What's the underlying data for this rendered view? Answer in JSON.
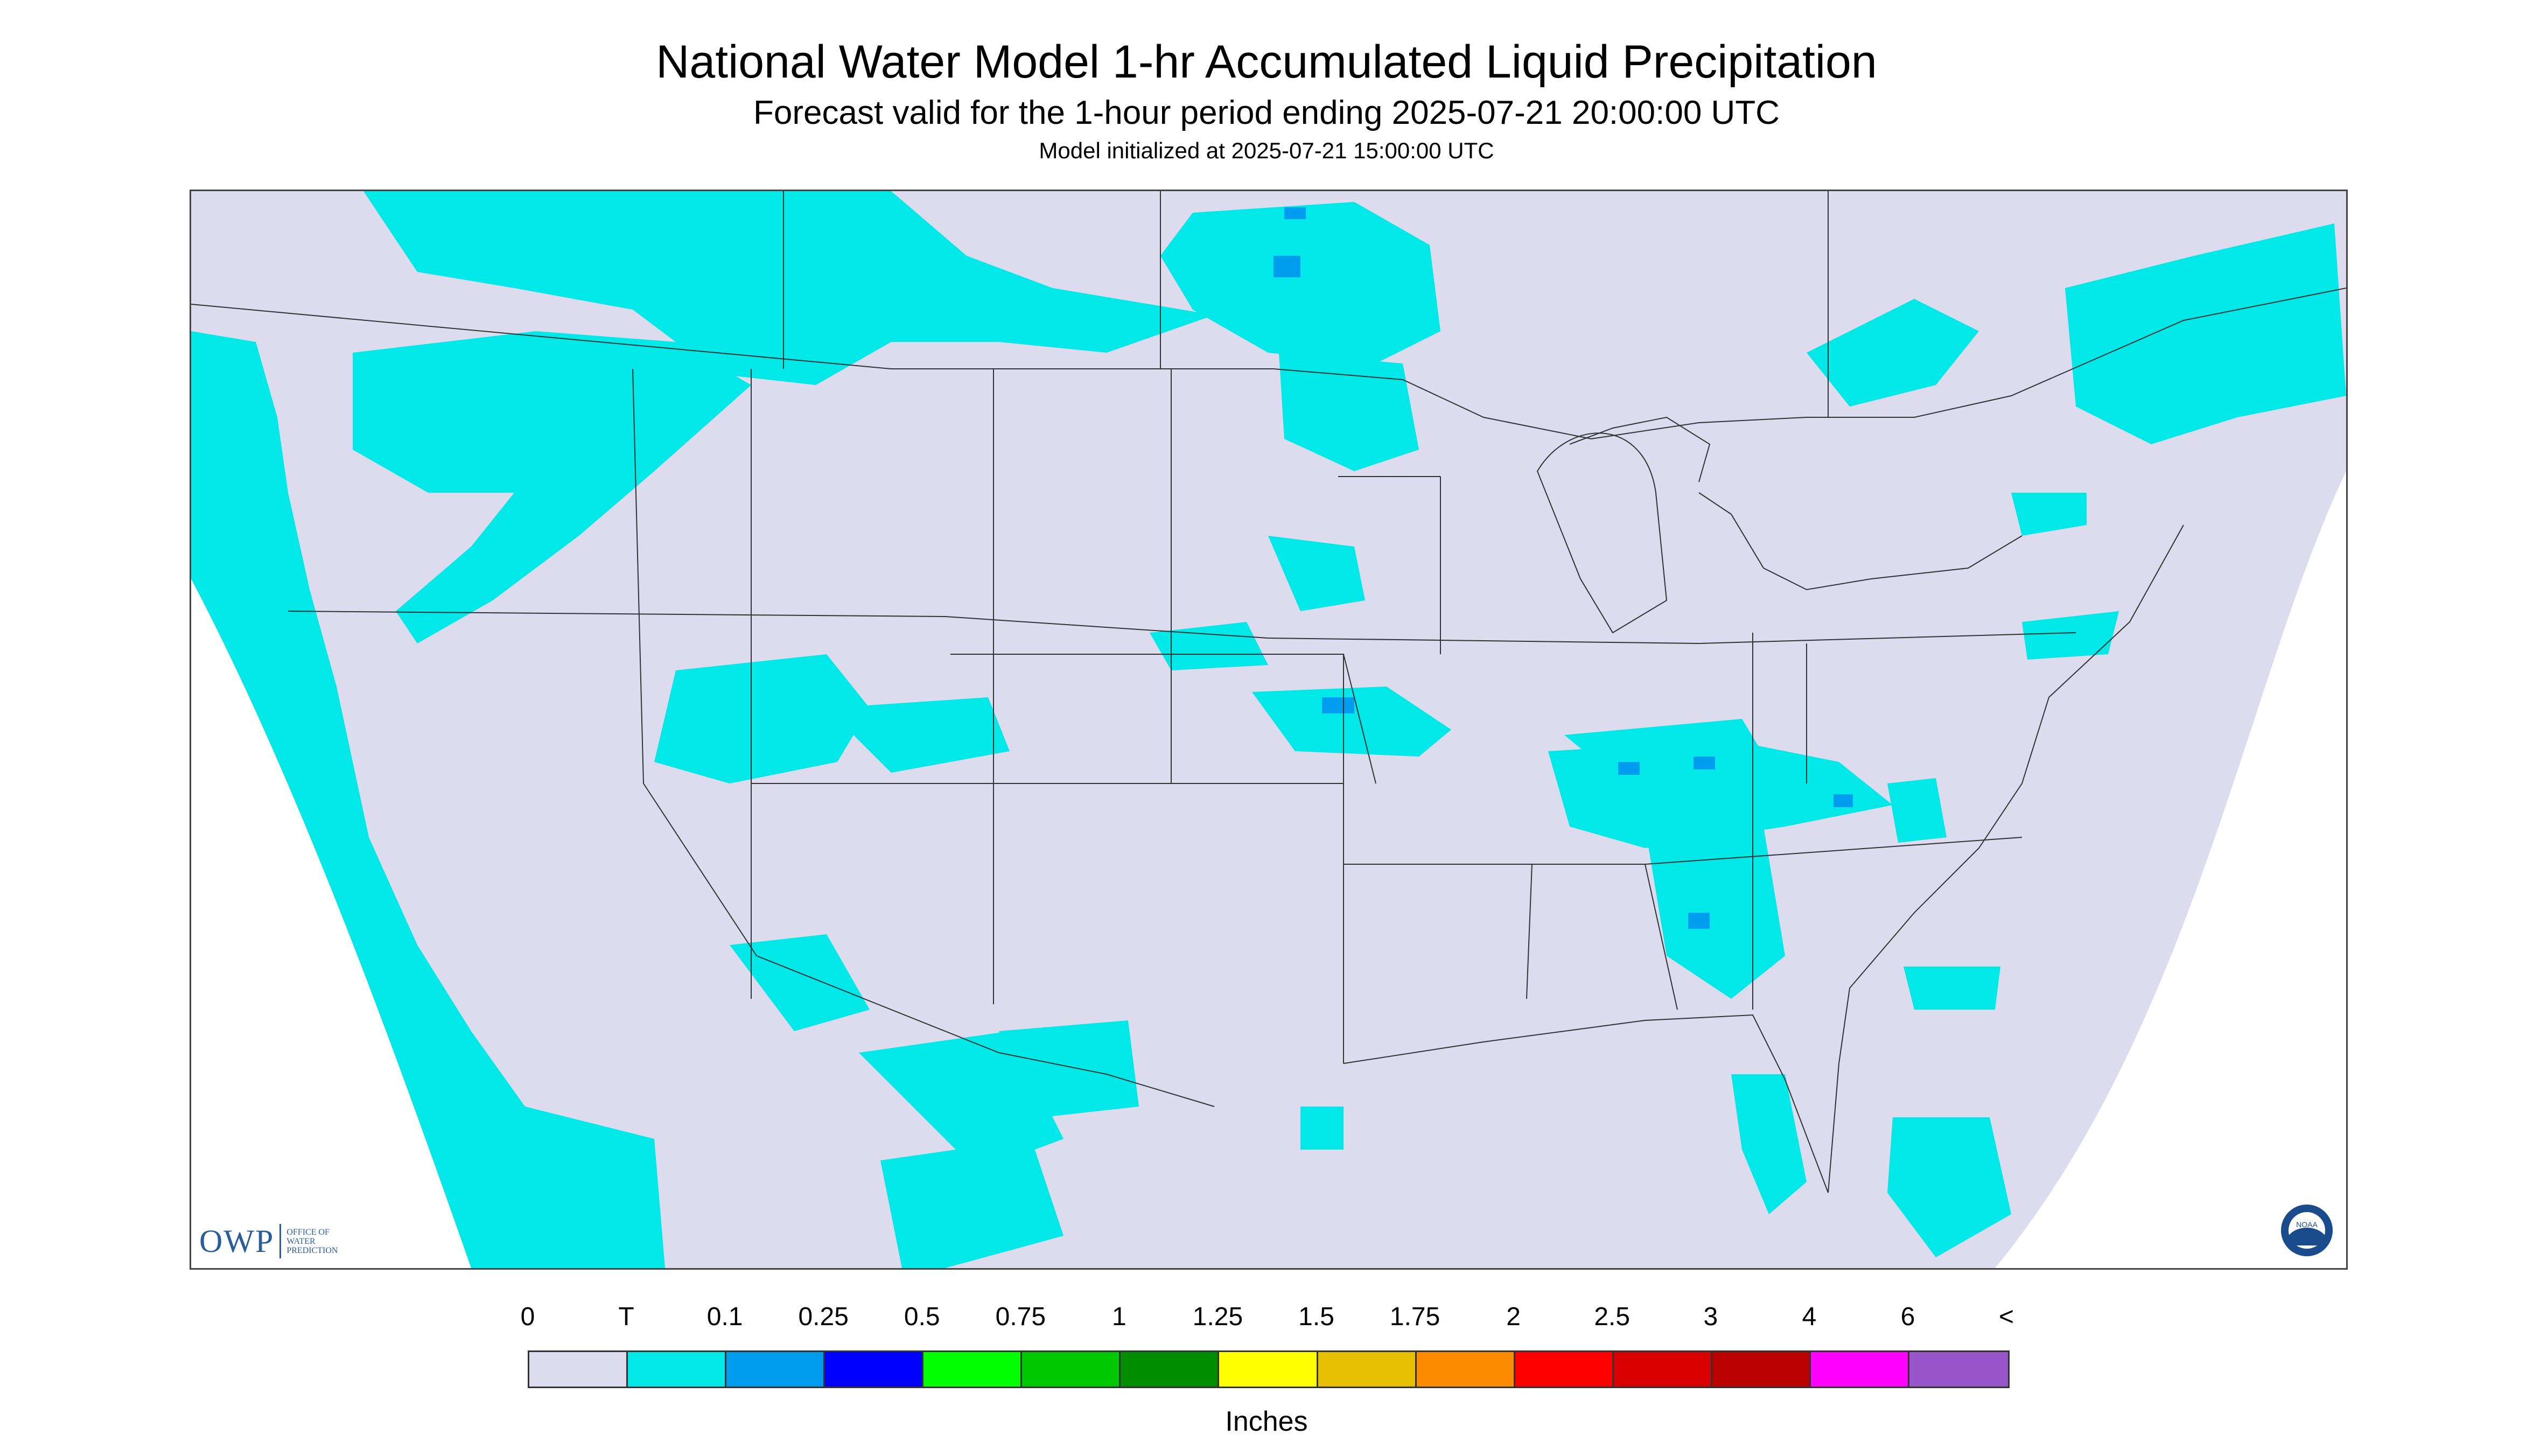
{
  "title": "National Water Model 1-hr Accumulated Liquid Precipitation",
  "subtitle": "Forecast valid for the 1-hour period ending 2025-07-21 20:00:00 UTC",
  "init_line": "Model initialized at 2025-07-21 15:00:00 UTC",
  "logo": {
    "name": "owp-logo",
    "abbr": "OWP",
    "lines": [
      "OFFICE OF",
      "WATER",
      "PREDICTION"
    ]
  },
  "noaa_logo": "noaa-logo",
  "legend": {
    "labels": [
      "0",
      "T",
      "0.1",
      "0.25",
      "0.5",
      "0.75",
      "1",
      "1.25",
      "1.5",
      "1.75",
      "2",
      "2.5",
      "3",
      "4",
      "6",
      "<"
    ],
    "colors": [
      "#dcdcee",
      "#00e8e8",
      "#009cf0",
      "#0000ff",
      "#00ff00",
      "#00c800",
      "#008e00",
      "#ffff00",
      "#e6c000",
      "#ff8c00",
      "#ff0000",
      "#d80000",
      "#bb0000",
      "#ff00ff",
      "#9955cc"
    ],
    "units": "Inches"
  },
  "colors": {
    "map_background": "#dcdcee",
    "trace_precip": "#00e8e8",
    "light_precip": "#009cf0",
    "moderate_precip": "#0000ff",
    "boundary_lines": "#333333"
  }
}
